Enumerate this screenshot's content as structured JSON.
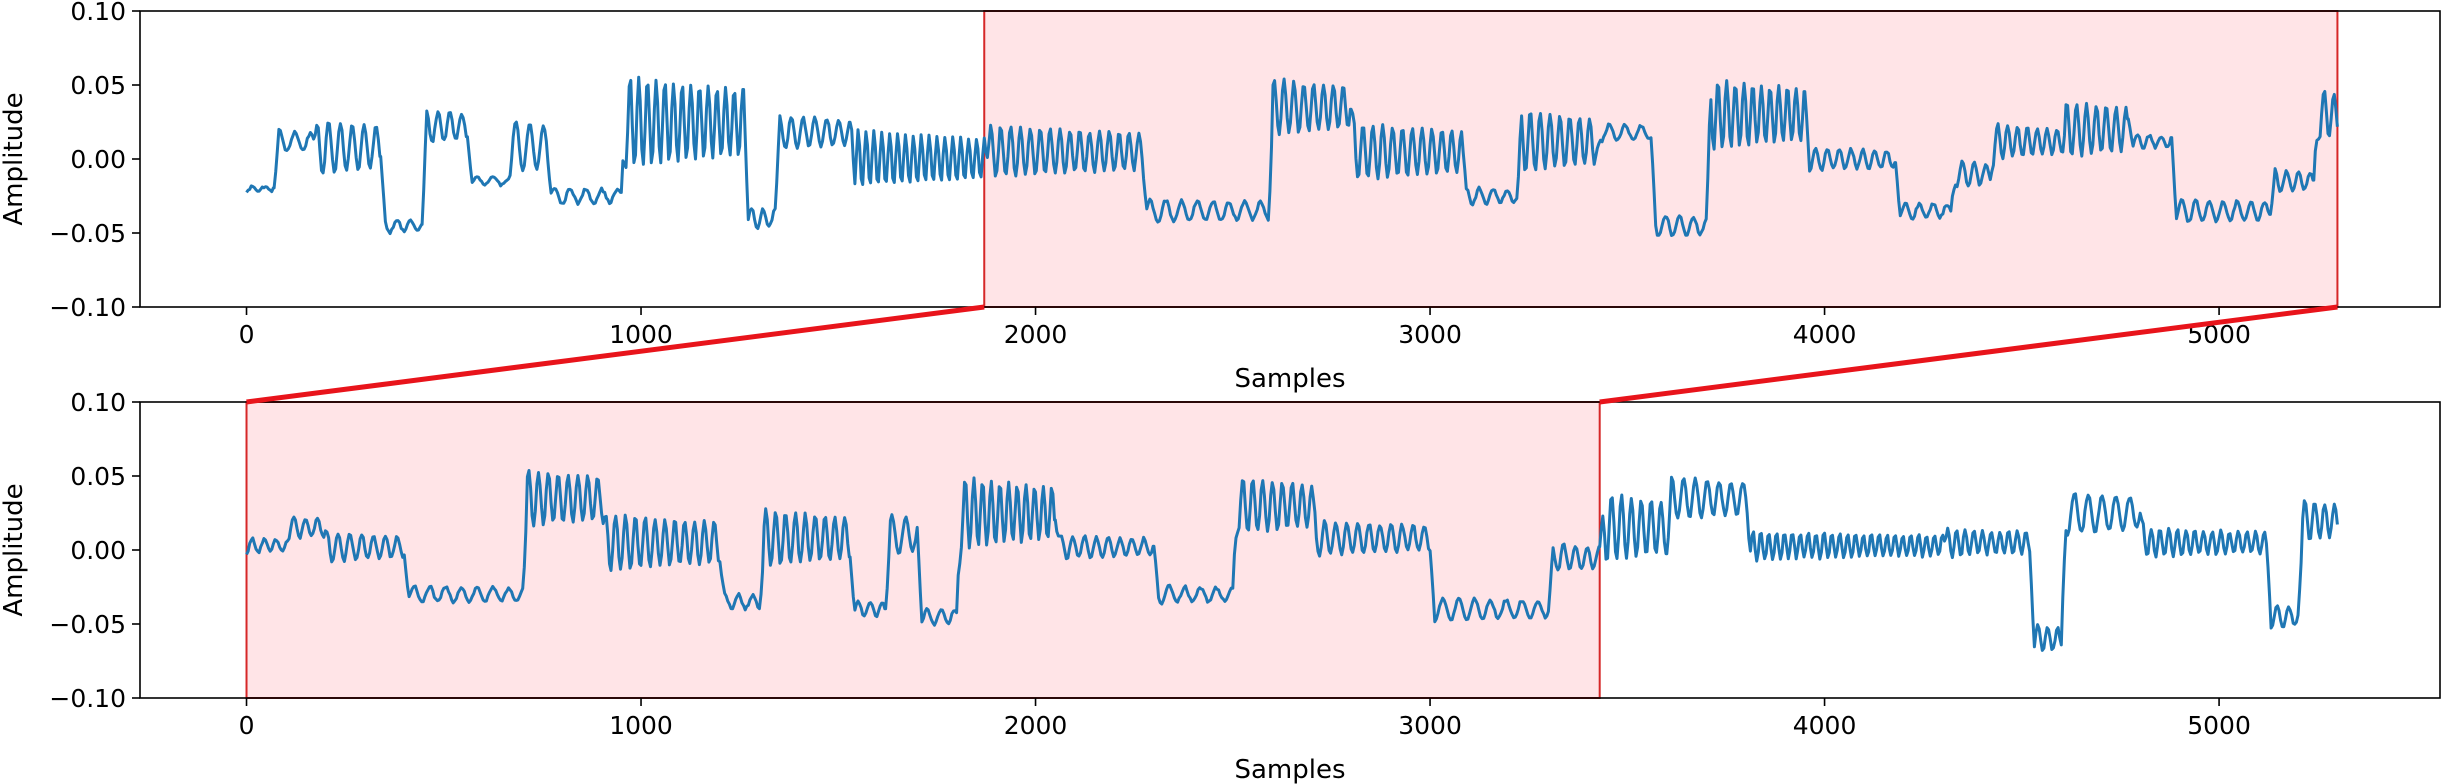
{
  "colors": {
    "signal": "#1f77b4",
    "highlight_fill": "#ffe4e7",
    "highlight_edge": "#d62728",
    "connector": "#e8141b",
    "axes": "#000000"
  },
  "chart_data": [
    {
      "type": "line",
      "xlabel": "Samples",
      "ylabel": "Amplitude",
      "xlim": [
        -270,
        5560
      ],
      "ylim": [
        -0.1,
        0.1
      ],
      "xticks": [
        0,
        1000,
        2000,
        3000,
        4000,
        5000
      ],
      "xtick_labels": [
        "0",
        "1000",
        "2000",
        "3000",
        "4000",
        "5000"
      ],
      "yticks": [
        -0.1,
        -0.05,
        0.0,
        0.05,
        0.1
      ],
      "ytick_labels": [
        "−0.10",
        "−0.05",
        "0.00",
        "0.05",
        "0.10"
      ],
      "x_extent": [
        0,
        5300
      ],
      "highlight": {
        "x": [
          1870,
          5300
        ],
        "y": [
          -0.1,
          0.1
        ]
      },
      "series": [
        {
          "segments": [
            {
              "start": 0,
              "end": 70,
              "base": -0.02,
              "osc_amp": 0.002,
              "period": 30
            },
            {
              "start": 70,
              "end": 170,
              "base": 0.012,
              "osc_amp": 0.008,
              "period": 40
            },
            {
              "start": 170,
              "end": 340,
              "base": 0.008,
              "osc_amp": 0.02,
              "period": 30
            },
            {
              "start": 340,
              "end": 445,
              "base": -0.045,
              "osc_amp": 0.005,
              "period": 35
            },
            {
              "start": 445,
              "end": 560,
              "base": 0.022,
              "osc_amp": 0.012,
              "period": 30
            },
            {
              "start": 560,
              "end": 660,
              "base": -0.015,
              "osc_amp": 0.003,
              "period": 40
            },
            {
              "start": 660,
              "end": 760,
              "base": 0.008,
              "osc_amp": 0.02,
              "period": 35
            },
            {
              "start": 760,
              "end": 950,
              "base": -0.025,
              "osc_amp": 0.006,
              "period": 40
            },
            {
              "start": 950,
              "end": 1260,
              "base": 0.025,
              "osc_amp": 0.032,
              "period": 22
            },
            {
              "start": 1260,
              "end": 1340,
              "base": -0.04,
              "osc_amp": 0.008,
              "period": 30
            },
            {
              "start": 1340,
              "end": 1530,
              "base": 0.018,
              "osc_amp": 0.012,
              "period": 30
            },
            {
              "start": 1530,
              "end": 1870,
              "base": 0.0,
              "osc_amp": 0.02,
              "period": 20
            },
            {
              "start": 1870,
              "end": 2270,
              "base": 0.005,
              "osc_amp": 0.018,
              "period": 25
            },
            {
              "start": 2270,
              "end": 2590,
              "base": -0.035,
              "osc_amp": 0.008,
              "period": 40
            },
            {
              "start": 2590,
              "end": 2800,
              "base": 0.035,
              "osc_amp": 0.02,
              "period": 25
            },
            {
              "start": 2800,
              "end": 3080,
              "base": 0.005,
              "osc_amp": 0.02,
              "period": 25
            },
            {
              "start": 3080,
              "end": 3220,
              "base": -0.025,
              "osc_amp": 0.006,
              "period": 35
            },
            {
              "start": 3220,
              "end": 3420,
              "base": 0.012,
              "osc_amp": 0.022,
              "period": 25
            },
            {
              "start": 3420,
              "end": 3560,
              "base": 0.018,
              "osc_amp": 0.006,
              "period": 40
            },
            {
              "start": 3560,
              "end": 3700,
              "base": -0.045,
              "osc_amp": 0.008,
              "period": 35
            },
            {
              "start": 3700,
              "end": 3950,
              "base": 0.03,
              "osc_amp": 0.025,
              "period": 22
            },
            {
              "start": 3950,
              "end": 4180,
              "base": 0.0,
              "osc_amp": 0.008,
              "period": 30
            },
            {
              "start": 4180,
              "end": 4320,
              "base": -0.035,
              "osc_amp": 0.006,
              "period": 35
            },
            {
              "start": 4320,
              "end": 4420,
              "base": -0.01,
              "osc_amp": 0.01,
              "period": 30
            },
            {
              "start": 4420,
              "end": 4600,
              "base": 0.012,
              "osc_amp": 0.012,
              "period": 25
            },
            {
              "start": 4600,
              "end": 4770,
              "base": 0.02,
              "osc_amp": 0.02,
              "period": 25
            },
            {
              "start": 4770,
              "end": 4880,
              "base": 0.012,
              "osc_amp": 0.005,
              "period": 30
            },
            {
              "start": 4880,
              "end": 5130,
              "base": -0.035,
              "osc_amp": 0.008,
              "period": 35
            },
            {
              "start": 5130,
              "end": 5240,
              "base": -0.015,
              "osc_amp": 0.008,
              "period": 30
            },
            {
              "start": 5240,
              "end": 5300,
              "base": 0.03,
              "osc_amp": 0.02,
              "period": 25
            }
          ]
        }
      ]
    },
    {
      "type": "line",
      "xlabel": "Samples",
      "ylabel": "Amplitude",
      "xlim": [
        -270,
        5560
      ],
      "ylim": [
        -0.1,
        0.1
      ],
      "xticks": [
        0,
        1000,
        2000,
        3000,
        4000,
        5000
      ],
      "xtick_labels": [
        "0",
        "1000",
        "2000",
        "3000",
        "4000",
        "5000"
      ],
      "yticks": [
        -0.1,
        -0.05,
        0.0,
        0.05,
        0.1
      ],
      "ytick_labels": [
        "−0.10",
        "−0.05",
        "0.00",
        "0.05",
        "0.10"
      ],
      "x_extent": [
        0,
        5300
      ],
      "highlight": {
        "x": [
          0,
          3430
        ],
        "y": [
          -0.1,
          0.1
        ]
      },
      "series": [
        {
          "segments": [
            {
              "start": 0,
              "end": 100,
              "base": 0.003,
              "osc_amp": 0.005,
              "period": 30
            },
            {
              "start": 100,
              "end": 200,
              "base": 0.015,
              "osc_amp": 0.008,
              "period": 30
            },
            {
              "start": 200,
              "end": 400,
              "base": 0.002,
              "osc_amp": 0.01,
              "period": 30
            },
            {
              "start": 400,
              "end": 700,
              "base": -0.03,
              "osc_amp": 0.006,
              "period": 40
            },
            {
              "start": 700,
              "end": 900,
              "base": 0.035,
              "osc_amp": 0.02,
              "period": 25
            },
            {
              "start": 900,
              "end": 1200,
              "base": 0.005,
              "osc_amp": 0.02,
              "period": 25
            },
            {
              "start": 1200,
              "end": 1300,
              "base": -0.035,
              "osc_amp": 0.006,
              "period": 35
            },
            {
              "start": 1300,
              "end": 1530,
              "base": 0.008,
              "osc_amp": 0.02,
              "period": 25
            },
            {
              "start": 1530,
              "end": 1620,
              "base": -0.04,
              "osc_amp": 0.006,
              "period": 30
            },
            {
              "start": 1620,
              "end": 1700,
              "base": 0.01,
              "osc_amp": 0.015,
              "period": 35
            },
            {
              "start": 1700,
              "end": 1800,
              "base": -0.045,
              "osc_amp": 0.006,
              "period": 35
            },
            {
              "start": 1800,
              "end": 2050,
              "base": 0.025,
              "osc_amp": 0.025,
              "period": 22
            },
            {
              "start": 2050,
              "end": 2300,
              "base": 0.002,
              "osc_amp": 0.008,
              "period": 30
            },
            {
              "start": 2300,
              "end": 2500,
              "base": -0.03,
              "osc_amp": 0.006,
              "period": 40
            },
            {
              "start": 2500,
              "end": 2700,
              "base": 0.03,
              "osc_amp": 0.02,
              "period": 25
            },
            {
              "start": 2700,
              "end": 3000,
              "base": 0.008,
              "osc_amp": 0.012,
              "period": 28
            },
            {
              "start": 3000,
              "end": 3300,
              "base": -0.04,
              "osc_amp": 0.008,
              "period": 40
            },
            {
              "start": 3300,
              "end": 3430,
              "base": -0.005,
              "osc_amp": 0.01,
              "period": 30
            },
            {
              "start": 3430,
              "end": 3600,
              "base": 0.015,
              "osc_amp": 0.025,
              "period": 25
            },
            {
              "start": 3600,
              "end": 3800,
              "base": 0.035,
              "osc_amp": 0.015,
              "period": 30
            },
            {
              "start": 3800,
              "end": 4300,
              "base": 0.003,
              "osc_amp": 0.01,
              "period": 20
            },
            {
              "start": 4300,
              "end": 4520,
              "base": 0.005,
              "osc_amp": 0.01,
              "period": 22
            },
            {
              "start": 4520,
              "end": 4600,
              "base": -0.06,
              "osc_amp": 0.01,
              "period": 25
            },
            {
              "start": 4600,
              "end": 4800,
              "base": 0.025,
              "osc_amp": 0.015,
              "period": 35
            },
            {
              "start": 4800,
              "end": 5120,
              "base": 0.005,
              "osc_amp": 0.01,
              "period": 22
            },
            {
              "start": 5120,
              "end": 5200,
              "base": -0.045,
              "osc_amp": 0.008,
              "period": 30
            },
            {
              "start": 5200,
              "end": 5300,
              "base": 0.02,
              "osc_amp": 0.015,
              "period": 25
            }
          ]
        }
      ]
    }
  ]
}
